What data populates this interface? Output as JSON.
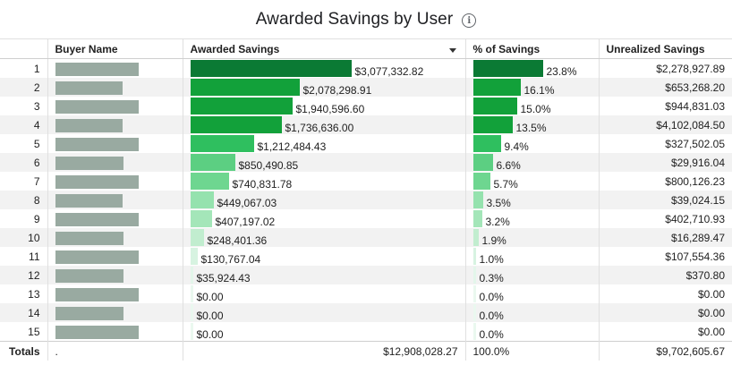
{
  "title": "Awarded Savings by User",
  "info_icon": "info-icon",
  "columns": {
    "buyer": "Buyer Name",
    "awarded": "Awarded Savings",
    "pct": "% of Savings",
    "unrealized": "Unrealized Savings"
  },
  "sort_icon": "chevron-down-icon",
  "colors": {
    "bars": [
      "#0b7a34",
      "#12a13a",
      "#12a13a",
      "#12a13a",
      "#2fbf5f",
      "#5ccf82",
      "#6ed690",
      "#95e2ae",
      "#a4e6b9",
      "#c1edcf",
      "#d7f3e1",
      "#e3f6ea",
      "#eaf8ef",
      "#eaf8ef",
      "#eaf8ef"
    ],
    "name_redaction": "#99aaa1"
  },
  "chart_data": {
    "type": "table",
    "title": "Awarded Savings by User",
    "rows": [
      {
        "rank": "1",
        "awarded": 3077332.82,
        "awarded_label": "$3,077,332.82",
        "pct": 23.8,
        "pct_label": "23.8%",
        "unrealized": "$2,278,927.89"
      },
      {
        "rank": "2",
        "awarded": 2078298.91,
        "awarded_label": "$2,078,298.91",
        "pct": 16.1,
        "pct_label": "16.1%",
        "unrealized": "$653,268.20"
      },
      {
        "rank": "3",
        "awarded": 1940596.6,
        "awarded_label": "$1,940,596.60",
        "pct": 15.0,
        "pct_label": "15.0%",
        "unrealized": "$944,831.03"
      },
      {
        "rank": "4",
        "awarded": 1736636.0,
        "awarded_label": "$1,736,636.00",
        "pct": 13.5,
        "pct_label": "13.5%",
        "unrealized": "$4,102,084.50"
      },
      {
        "rank": "5",
        "awarded": 1212484.43,
        "awarded_label": "$1,212,484.43",
        "pct": 9.4,
        "pct_label": "9.4%",
        "unrealized": "$327,502.05"
      },
      {
        "rank": "6",
        "awarded": 850490.85,
        "awarded_label": "$850,490.85",
        "pct": 6.6,
        "pct_label": "6.6%",
        "unrealized": "$29,916.04"
      },
      {
        "rank": "7",
        "awarded": 740831.78,
        "awarded_label": "$740,831.78",
        "pct": 5.7,
        "pct_label": "5.7%",
        "unrealized": "$800,126.23"
      },
      {
        "rank": "8",
        "awarded": 449067.03,
        "awarded_label": "$449,067.03",
        "pct": 3.5,
        "pct_label": "3.5%",
        "unrealized": "$39,024.15"
      },
      {
        "rank": "9",
        "awarded": 407197.02,
        "awarded_label": "$407,197.02",
        "pct": 3.2,
        "pct_label": "3.2%",
        "unrealized": "$402,710.93"
      },
      {
        "rank": "10",
        "awarded": 248401.36,
        "awarded_label": "$248,401.36",
        "pct": 1.9,
        "pct_label": "1.9%",
        "unrealized": "$16,289.47"
      },
      {
        "rank": "11",
        "awarded": 130767.04,
        "awarded_label": "$130,767.04",
        "pct": 1.0,
        "pct_label": "1.0%",
        "unrealized": "$107,554.36"
      },
      {
        "rank": "12",
        "awarded": 35924.43,
        "awarded_label": "$35,924.43",
        "pct": 0.3,
        "pct_label": "0.3%",
        "unrealized": "$370.80"
      },
      {
        "rank": "13",
        "awarded": 0,
        "awarded_label": "$0.00",
        "pct": 0.0,
        "pct_label": "0.0%",
        "unrealized": "$0.00"
      },
      {
        "rank": "14",
        "awarded": 0,
        "awarded_label": "$0.00",
        "pct": 0.0,
        "pct_label": "0.0%",
        "unrealized": "$0.00"
      },
      {
        "rank": "15",
        "awarded": 0,
        "awarded_label": "$0.00",
        "pct": 0.0,
        "pct_label": "0.0%",
        "unrealized": "$0.00"
      }
    ],
    "awarded_max": 3077332.82,
    "pct_max": 23.8
  },
  "totals": {
    "label": "Totals",
    "buyer": ".",
    "awarded": "$12,908,028.27",
    "pct": "100.0%",
    "unrealized": "$9,702,605.67"
  }
}
